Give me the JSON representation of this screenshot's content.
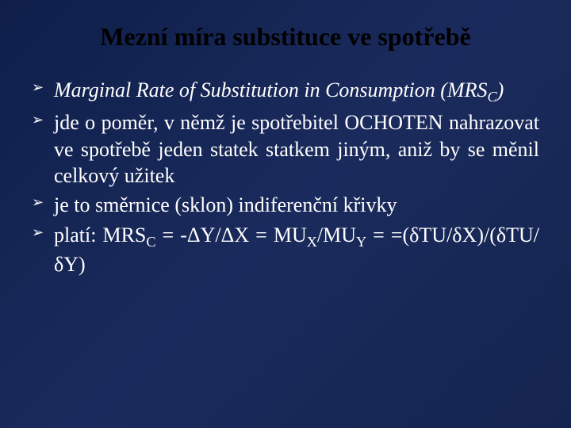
{
  "slide": {
    "background_color": "#1a2a5c",
    "text_color": "#ffffff",
    "title_color": "#000000",
    "title": "Mezní míra substituce ve spotřebě",
    "title_fontsize": 32,
    "body_fontsize": 26,
    "line_height": 1.28,
    "bullet_glyph": "➢",
    "bullets": [
      {
        "text_html": "<span class=\"italic\">Marginal Rate of Substitution in Consumption (MRS<sub>C</sub>)</span>",
        "italic": true
      },
      {
        "text_html": "jde o poměr, v němž je spotřebitel OCHOTEN nahrazovat ve spotřebě jeden statek statkem jiným, aniž by se měnil celkový užitek",
        "italic": false
      },
      {
        "text_html": "je to směrnice (sklon) indiferenční křivky",
        "italic": false
      },
      {
        "text_html": "platí: MRS<sub>C</sub> = -ΔY/ΔX = MU<sub>X</sub>/MU<sub>Y</sub> = =(δTU/δX)/(δTU/δY)",
        "italic": false
      }
    ]
  }
}
